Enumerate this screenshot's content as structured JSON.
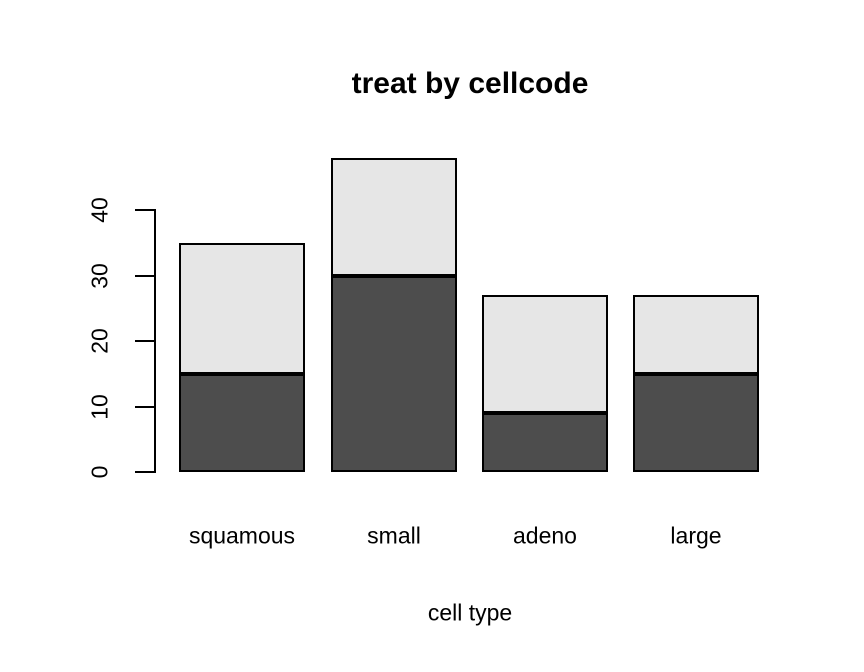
{
  "chart_data": {
    "type": "bar",
    "stacked": true,
    "title": "treat by cellcode",
    "xlabel": "cell type",
    "ylabel": "",
    "categories": [
      "squamous",
      "small",
      "adeno",
      "large"
    ],
    "series": [
      {
        "name": "dark-bottom-segment",
        "color": "#4D4D4D",
        "values": [
          15,
          30,
          9,
          15
        ]
      },
      {
        "name": "light-top-segment",
        "color": "#E6E6E6",
        "values": [
          20,
          18,
          18,
          12
        ]
      }
    ],
    "totals": [
      35,
      48,
      27,
      27
    ],
    "yticks": [
      0,
      10,
      20,
      30,
      40
    ],
    "ylim": [
      0,
      48
    ],
    "bar_border_color": "#000000",
    "axis_color": "#000000",
    "text_color": "#000000",
    "background_color": "#FFFFFF",
    "grid": false,
    "legend": false
  }
}
